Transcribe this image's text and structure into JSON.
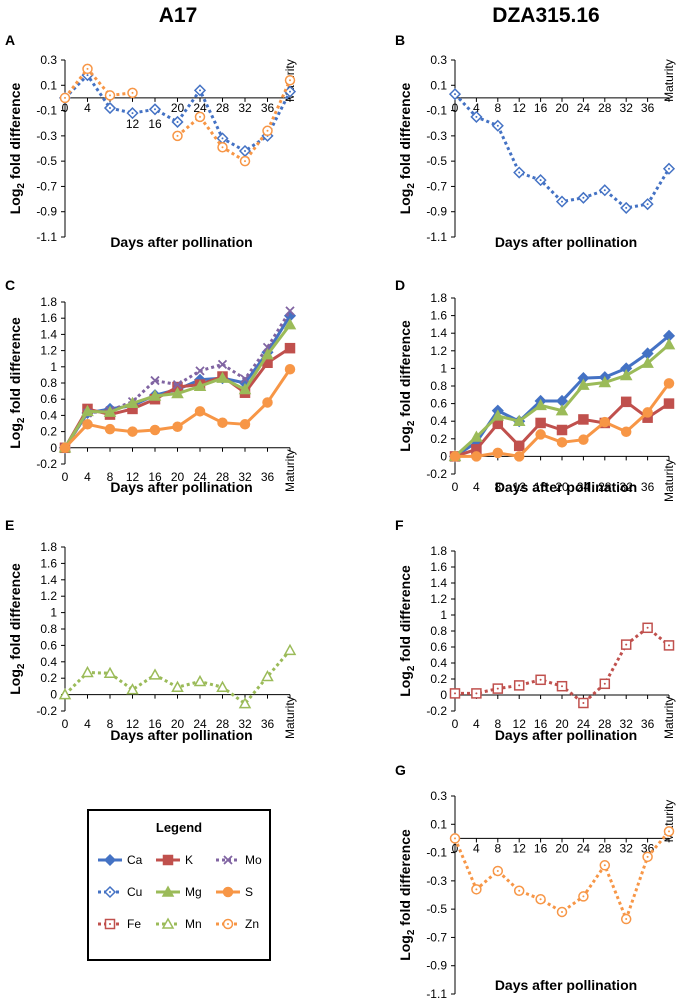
{
  "figure": {
    "column_titles": [
      "A17",
      "DZA315.16"
    ],
    "x_categories": [
      "0",
      "4",
      "8",
      "12",
      "16",
      "20",
      "24",
      "28",
      "32",
      "36",
      "Maturity"
    ],
    "x_label": "Days after pollination",
    "y_label_main": "Log",
    "y_label_sub": "2",
    "y_label_rest": " fold difference"
  },
  "colors": {
    "Ca": "#4472C4",
    "Cu": "#4472C4",
    "K": "#C0504D",
    "Fe": "#C0504D",
    "Mo": "#8064A2",
    "Mg": "#9BBB59",
    "Mn": "#9BBB59",
    "S": "#F79646",
    "Zn": "#F79646",
    "axis": "#000000",
    "text": "#000000"
  },
  "legend": {
    "title": "Legend",
    "items": [
      {
        "key": "Ca",
        "label": "Ca"
      },
      {
        "key": "K",
        "label": "K"
      },
      {
        "key": "Mo",
        "label": "Mo"
      },
      {
        "key": "Cu",
        "label": "Cu"
      },
      {
        "key": "Mg",
        "label": "Mg"
      },
      {
        "key": "S",
        "label": "S"
      },
      {
        "key": "Fe",
        "label": "Fe"
      },
      {
        "key": "Mn",
        "label": "Mn"
      },
      {
        "key": "Zn",
        "label": "Zn"
      }
    ]
  },
  "chart_data": [
    {
      "panel": "A",
      "type": "line",
      "xlabel": "Days after pollination",
      "ylabel": "Log2 fold difference",
      "ylim": [
        -1.1,
        0.3
      ],
      "yticks": [
        "0.3",
        "0.1",
        "-0.1",
        "-0.3",
        "-0.5",
        "-0.7",
        "-0.9",
        "-1.1"
      ],
      "categories": [
        "0",
        "4",
        "8",
        "12",
        "16",
        "20",
        "24",
        "28",
        "32",
        "36",
        "Maturity"
      ],
      "series": [
        {
          "name": "Cu",
          "values": [
            0.0,
            0.18,
            -0.08,
            -0.12,
            -0.09,
            -0.19,
            0.06,
            -0.32,
            -0.42,
            -0.3,
            0.05
          ]
        },
        {
          "name": "Zn",
          "values": [
            0.0,
            0.23,
            0.02,
            0.04,
            null,
            -0.3,
            -0.15,
            -0.39,
            -0.5,
            -0.26,
            0.14
          ]
        }
      ]
    },
    {
      "panel": "B",
      "type": "line",
      "xlabel": "Days after pollination",
      "ylabel": "Log2 fold difference",
      "ylim": [
        -1.1,
        0.3
      ],
      "yticks": [
        "0.3",
        "0.1",
        "-0.1",
        "-0.3",
        "-0.5",
        "-0.7",
        "-0.9",
        "-1.1"
      ],
      "categories": [
        "0",
        "4",
        "8",
        "12",
        "16",
        "20",
        "24",
        "28",
        "32",
        "36",
        "Maturity"
      ],
      "series": [
        {
          "name": "Cu",
          "values": [
            0.03,
            -0.15,
            -0.22,
            -0.59,
            -0.65,
            -0.82,
            -0.79,
            -0.73,
            -0.87,
            -0.84,
            -0.56
          ]
        }
      ]
    },
    {
      "panel": "C",
      "type": "line",
      "xlabel": "Days after pollination",
      "ylabel": "Log2 fold difference",
      "ylim": [
        -0.2,
        1.8
      ],
      "yticks": [
        "1.8",
        "1.6",
        "1.4",
        "1.2",
        "1",
        "0.8",
        "0.6",
        "0.4",
        "0.2",
        "0",
        "-0.2"
      ],
      "categories": [
        "0",
        "4",
        "8",
        "12",
        "16",
        "20",
        "24",
        "28",
        "32",
        "36",
        "Maturity"
      ],
      "series": [
        {
          "name": "Ca",
          "values": [
            0.0,
            0.43,
            0.48,
            0.52,
            0.65,
            0.72,
            0.84,
            0.86,
            0.8,
            1.18,
            1.63
          ]
        },
        {
          "name": "K",
          "values": [
            0.0,
            0.48,
            0.41,
            0.48,
            0.6,
            0.75,
            0.78,
            0.88,
            0.68,
            1.05,
            1.23
          ]
        },
        {
          "name": "Mo",
          "values": [
            0.0,
            0.43,
            0.46,
            0.57,
            0.83,
            0.78,
            0.95,
            1.03,
            0.85,
            1.24,
            1.69
          ]
        },
        {
          "name": "Mg",
          "values": [
            0.0,
            0.45,
            0.44,
            0.55,
            0.64,
            0.67,
            0.76,
            0.86,
            0.72,
            1.15,
            1.52
          ]
        },
        {
          "name": "S",
          "values": [
            0.0,
            0.29,
            0.23,
            0.2,
            0.22,
            0.26,
            0.45,
            0.31,
            0.29,
            0.56,
            0.97
          ]
        }
      ]
    },
    {
      "panel": "D",
      "type": "line",
      "xlabel": "Days after pollination",
      "ylabel": "Log2 fold difference",
      "ylim": [
        -0.2,
        1.8
      ],
      "yticks": [
        "1.8",
        "1.6",
        "1.4",
        "1.2",
        "1",
        "0.8",
        "0.6",
        "0.4",
        "0.2",
        "0",
        "-0.2"
      ],
      "categories": [
        "0",
        "4",
        "8",
        "12",
        "16",
        "20",
        "24",
        "28",
        "32",
        "36",
        "Maturity"
      ],
      "series": [
        {
          "name": "Ca",
          "values": [
            0.0,
            0.16,
            0.52,
            0.4,
            0.63,
            0.63,
            0.89,
            0.9,
            1.0,
            1.17,
            1.37
          ]
        },
        {
          "name": "K",
          "values": [
            0.0,
            0.08,
            0.37,
            0.12,
            0.38,
            0.3,
            0.42,
            0.38,
            0.62,
            0.44,
            0.6
          ]
        },
        {
          "name": "Mg",
          "values": [
            0.0,
            0.22,
            0.46,
            0.4,
            0.58,
            0.52,
            0.81,
            0.84,
            0.92,
            1.06,
            1.27
          ]
        },
        {
          "name": "S",
          "values": [
            0.0,
            0.0,
            0.04,
            0.0,
            0.25,
            0.16,
            0.19,
            0.39,
            0.28,
            0.5,
            0.83
          ]
        }
      ]
    },
    {
      "panel": "E",
      "type": "line",
      "xlabel": "Days after pollination",
      "ylabel": "Log2 fold difference",
      "ylim": [
        -0.2,
        1.8
      ],
      "yticks": [
        "1.8",
        "1.6",
        "1.4",
        "1.2",
        "1",
        "0.8",
        "0.6",
        "0.4",
        "0.2",
        "0",
        "-0.2"
      ],
      "categories": [
        "0",
        "4",
        "8",
        "12",
        "16",
        "20",
        "24",
        "28",
        "32",
        "36",
        "Maturity"
      ],
      "series": [
        {
          "name": "Mn",
          "values": [
            0.0,
            0.27,
            0.26,
            0.06,
            0.24,
            0.09,
            0.16,
            0.09,
            -0.11,
            0.22,
            0.54
          ]
        }
      ]
    },
    {
      "panel": "F",
      "type": "line",
      "xlabel": "Days after pollination",
      "ylabel": "Log2 fold difference",
      "ylim": [
        -0.2,
        1.8
      ],
      "yticks": [
        "1.8",
        "1.6",
        "1.4",
        "1.2",
        "1",
        "0.8",
        "0.6",
        "0.4",
        "0.2",
        "0",
        "-0.2"
      ],
      "categories": [
        "0",
        "4",
        "8",
        "12",
        "16",
        "20",
        "24",
        "28",
        "32",
        "36",
        "Maturity"
      ],
      "series": [
        {
          "name": "Fe",
          "values": [
            0.02,
            0.02,
            0.08,
            0.12,
            0.19,
            0.11,
            -0.1,
            0.14,
            0.63,
            0.84,
            0.62
          ]
        }
      ]
    },
    {
      "panel": "G",
      "type": "line",
      "xlabel": "Days after pollination",
      "ylabel": "Log2 fold difference",
      "ylim": [
        -1.1,
        0.3
      ],
      "yticks": [
        "0.3",
        "0.1",
        "-0.1",
        "-0.3",
        "-0.5",
        "-0.7",
        "-0.9",
        "-1.1"
      ],
      "categories": [
        "0",
        "4",
        "8",
        "12",
        "16",
        "20",
        "24",
        "28",
        "32",
        "36",
        "Maturity"
      ],
      "series": [
        {
          "name": "Zn",
          "values": [
            0.0,
            -0.36,
            -0.23,
            -0.37,
            -0.43,
            -0.52,
            -0.41,
            -0.19,
            -0.57,
            -0.13,
            0.05
          ]
        }
      ]
    }
  ]
}
